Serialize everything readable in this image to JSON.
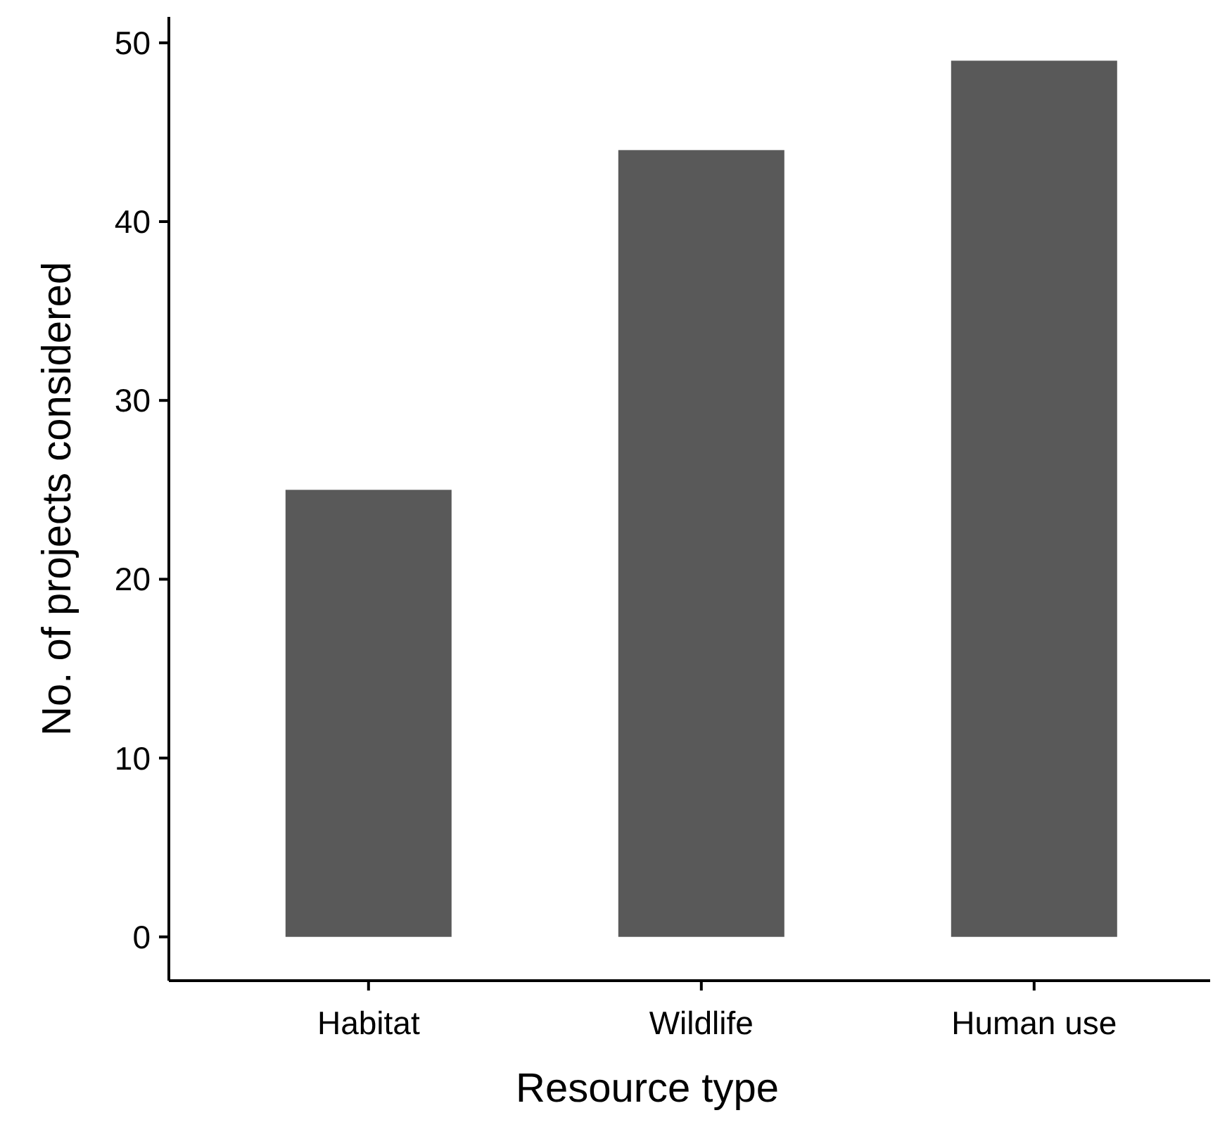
{
  "chart_data": {
    "type": "bar",
    "xlabel": "Resource type",
    "ylabel": "No. of projects considered",
    "categories": [
      "Habitat",
      "Wildlife",
      "Human use"
    ],
    "values": [
      25,
      44,
      49
    ],
    "color": "#595959",
    "ylim": [
      -2.45,
      51.45
    ],
    "yticks": [
      0,
      10,
      20,
      30,
      40,
      50
    ],
    "grid": false
  }
}
